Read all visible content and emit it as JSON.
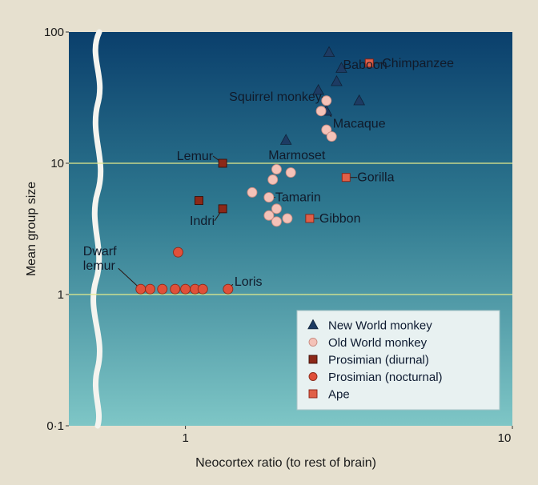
{
  "chart_data": {
    "type": "scatter",
    "title": "",
    "xlabel": "Neocortex ratio (to rest of brain)",
    "ylabel": "Mean group size",
    "x_scale": "log",
    "y_scale": "log",
    "xlim": [
      0.44,
      10
    ],
    "ylim": [
      0.1,
      100
    ],
    "x_ticks": [
      "1",
      "10"
    ],
    "y_ticks": [
      "0·1",
      "1",
      "10",
      "100"
    ],
    "gridlines_y": [
      1,
      10
    ],
    "legend_position": "bottom-right",
    "colors": {
      "bg_top": "#0a3f6c",
      "bg_bottom": "#7ec6c6",
      "new_world": "#1d3b63",
      "old_world": "#f4c2b8",
      "diurnal": "#8c2818",
      "nocturnal": "#e0503a",
      "ape": "#e06048",
      "gridline": "#e4eb8c"
    },
    "series": [
      {
        "name": "New World monkey",
        "marker": "triangle",
        "points": [
          [
            2.75,
            70
          ],
          [
            3.0,
            53
          ],
          [
            2.9,
            42
          ],
          [
            2.55,
            36
          ],
          [
            3.4,
            30
          ],
          [
            2.7,
            25
          ],
          [
            2.03,
            15
          ]
        ]
      },
      {
        "name": "Old World monkey",
        "marker": "circle",
        "points": [
          [
            2.7,
            30
          ],
          [
            2.6,
            25
          ],
          [
            2.7,
            18
          ],
          [
            2.8,
            16
          ],
          [
            1.9,
            9
          ],
          [
            2.1,
            8.5
          ],
          [
            1.85,
            7.5
          ],
          [
            1.6,
            6
          ],
          [
            1.8,
            5.5
          ],
          [
            1.9,
            4.5
          ],
          [
            1.8,
            4.0
          ],
          [
            1.9,
            3.6
          ],
          [
            2.05,
            3.8
          ]
        ]
      },
      {
        "name": "Prosimian (diurnal)",
        "marker": "square",
        "points": [
          [
            1.3,
            10
          ],
          [
            1.1,
            5.2
          ],
          [
            1.3,
            4.5
          ]
        ]
      },
      {
        "name": "Prosimian (nocturnal)",
        "marker": "circle",
        "points": [
          [
            0.95,
            2.1
          ],
          [
            0.73,
            1.1
          ],
          [
            0.78,
            1.1
          ],
          [
            0.85,
            1.1
          ],
          [
            0.93,
            1.1
          ],
          [
            1.0,
            1.1
          ],
          [
            1.07,
            1.1
          ],
          [
            1.13,
            1.1
          ],
          [
            1.35,
            1.1
          ]
        ]
      },
      {
        "name": "Ape",
        "marker": "square",
        "points": [
          [
            3.65,
            58
          ],
          [
            3.1,
            7.8
          ],
          [
            2.4,
            3.8
          ]
        ]
      }
    ],
    "annotations": [
      {
        "text": "Chimpanzee",
        "x": 3.65,
        "y": 58
      },
      {
        "text": "Baboon",
        "x": 3.0,
        "y": 53
      },
      {
        "text": "Squirrel monkey",
        "x": 2.7,
        "y": 30
      },
      {
        "text": "Macaque",
        "x": 2.7,
        "y": 25
      },
      {
        "text": "Marmoset",
        "x": 2.03,
        "y": 15
      },
      {
        "text": "Lemur",
        "x": 1.3,
        "y": 10
      },
      {
        "text": "Gorilla",
        "x": 3.1,
        "y": 7.8
      },
      {
        "text": "Tamarin",
        "x": 1.8,
        "y": 5.5
      },
      {
        "text": "Indri",
        "x": 1.3,
        "y": 4.5
      },
      {
        "text": "Gibbon",
        "x": 2.4,
        "y": 3.8
      },
      {
        "text": "Dwarf",
        "x": 0.73,
        "y": 1.1
      },
      {
        "text": "lemur",
        "x": 0.73,
        "y": 1.1
      },
      {
        "text": "Loris",
        "x": 1.35,
        "y": 1.1
      }
    ]
  }
}
